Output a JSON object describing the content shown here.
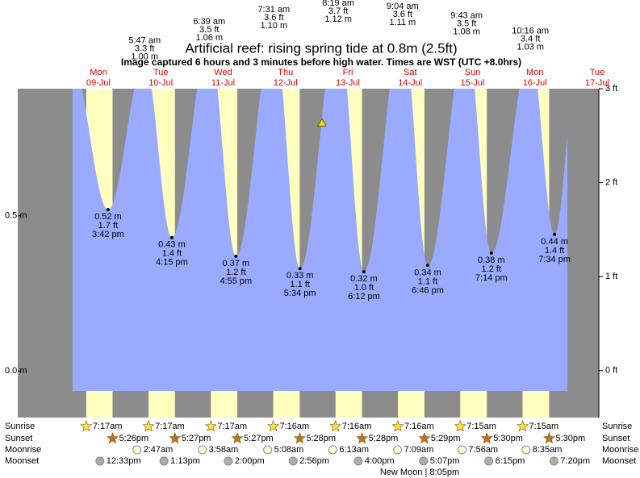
{
  "chart_data": {
    "type": "tide",
    "title": "Artificial reef: rising  spring tide at 0.8m (2.5ft)",
    "subtitle": "Image captured 6 hours and 3 minutes before high water. Times are WST (UTC +8.0hrs)",
    "row_labels": [
      "Sunrise",
      "Sunset",
      "Moonrise",
      "Moonset"
    ],
    "moon_phase": "New Moon | 8:05pm",
    "marker_m": 0.8,
    "ylim": [
      -0.15,
      0.91
    ],
    "yticks": [
      {
        "value": 0.5,
        "label": "0.5 m"
      },
      {
        "value": 0.0,
        "label": "0.0 m"
      }
    ],
    "y2lim": [
      -0.5,
      3.0
    ],
    "y2ticks": [
      {
        "value": 3,
        "label": "3 ft"
      },
      {
        "value": 2,
        "label": "2 ft"
      },
      {
        "value": 1,
        "label": "1 ft"
      },
      {
        "value": 0,
        "label": "0 ft"
      }
    ],
    "colors": {
      "night": "#8c8c8c",
      "day": "#ffffc0",
      "water": "#9aabff",
      "label": "#e00000"
    },
    "days": [
      {
        "weekday": "Mon",
        "date": "09-Jul",
        "high": null,
        "low": {
          "time": "3:42 pm",
          "m": 0.52,
          "m_label": "0.52 m",
          "ft": 1.7,
          "ft_label": "1.7 ft"
        },
        "sunrise": "7:17am",
        "sunset": "5:26pm",
        "moonrise": null,
        "moonset": "12:33pm"
      },
      {
        "weekday": "Tue",
        "date": "10-Jul",
        "high": {
          "time": "5:47 am",
          "ft": 3.3,
          "ft_label": "3.3 ft",
          "m": 1.0,
          "m_label": "1.00 m"
        },
        "low": {
          "time": "4:15 pm",
          "m": 0.43,
          "m_label": "0.43 m",
          "ft": 1.4,
          "ft_label": "1.4 ft"
        },
        "sunrise": "7:17am",
        "sunset": "5:27pm",
        "moonrise": "2:47am",
        "moonset": "1:13pm"
      },
      {
        "weekday": "Wed",
        "date": "11-Jul",
        "high": {
          "time": "6:39 am",
          "ft": 3.5,
          "ft_label": "3.5 ft",
          "m": 1.06,
          "m_label": "1.06 m"
        },
        "low": {
          "time": "4:55 pm",
          "m": 0.37,
          "m_label": "0.37 m",
          "ft": 1.2,
          "ft_label": "1.2 ft"
        },
        "sunrise": "7:17am",
        "sunset": "5:27pm",
        "moonrise": "3:58am",
        "moonset": "2:00pm"
      },
      {
        "weekday": "Thu",
        "date": "12-Jul",
        "high": {
          "time": "7:31 am",
          "ft": 3.6,
          "ft_label": "3.6 ft",
          "m": 1.1,
          "m_label": "1.10 m"
        },
        "low": {
          "time": "5:34 pm",
          "m": 0.33,
          "m_label": "0.33 m",
          "ft": 1.1,
          "ft_label": "1.1 ft"
        },
        "sunrise": "7:16am",
        "sunset": "5:28pm",
        "moonrise": "5:08am",
        "moonset": "2:56pm"
      },
      {
        "weekday": "Fri",
        "date": "13-Jul",
        "high": {
          "time": "8:19 am",
          "ft": 3.7,
          "ft_label": "3.7 ft",
          "m": 1.12,
          "m_label": "1.12 m"
        },
        "low": {
          "time": "6:12 pm",
          "m": 0.32,
          "m_label": "0.32 m",
          "ft": 1.0,
          "ft_label": "1.0 ft"
        },
        "sunrise": "7:16am",
        "sunset": "5:28pm",
        "moonrise": "6:13am",
        "moonset": "4:00pm"
      },
      {
        "weekday": "Sat",
        "date": "14-Jul",
        "high": {
          "time": "9:04 am",
          "ft": 3.6,
          "ft_label": "3.6 ft",
          "m": 1.11,
          "m_label": "1.11 m"
        },
        "low": {
          "time": "6:46 pm",
          "m": 0.34,
          "m_label": "0.34 m",
          "ft": 1.1,
          "ft_label": "1.1 ft"
        },
        "sunrise": "7:16am",
        "sunset": "5:29pm",
        "moonrise": "7:09am",
        "moonset": "5:07pm"
      },
      {
        "weekday": "Sun",
        "date": "15-Jul",
        "high": {
          "time": "9:43 am",
          "ft": 3.5,
          "ft_label": "3.5 ft",
          "m": 1.08,
          "m_label": "1.08 m"
        },
        "low": {
          "time": "7:14 pm",
          "m": 0.38,
          "m_label": "0.38 m",
          "ft": 1.2,
          "ft_label": "1.2 ft"
        },
        "sunrise": "7:15am",
        "sunset": "5:30pm",
        "moonrise": "7:56am",
        "moonset": "6:15pm"
      },
      {
        "weekday": "Mon",
        "date": "16-Jul",
        "high": {
          "time": "10:16 am",
          "ft": 3.4,
          "ft_label": "3.4 ft",
          "m": 1.03,
          "m_label": "1.03 m"
        },
        "low": {
          "time": "7:34 pm",
          "m": 0.44,
          "m_label": "0.44 m",
          "ft": 1.4,
          "ft_label": "1.4 ft"
        },
        "sunrise": "7:15am",
        "sunset": "5:30pm",
        "moonrise": "8:35am",
        "moonset": "7:20pm"
      },
      {
        "weekday": "Tue",
        "date": "17-Jul"
      }
    ]
  }
}
